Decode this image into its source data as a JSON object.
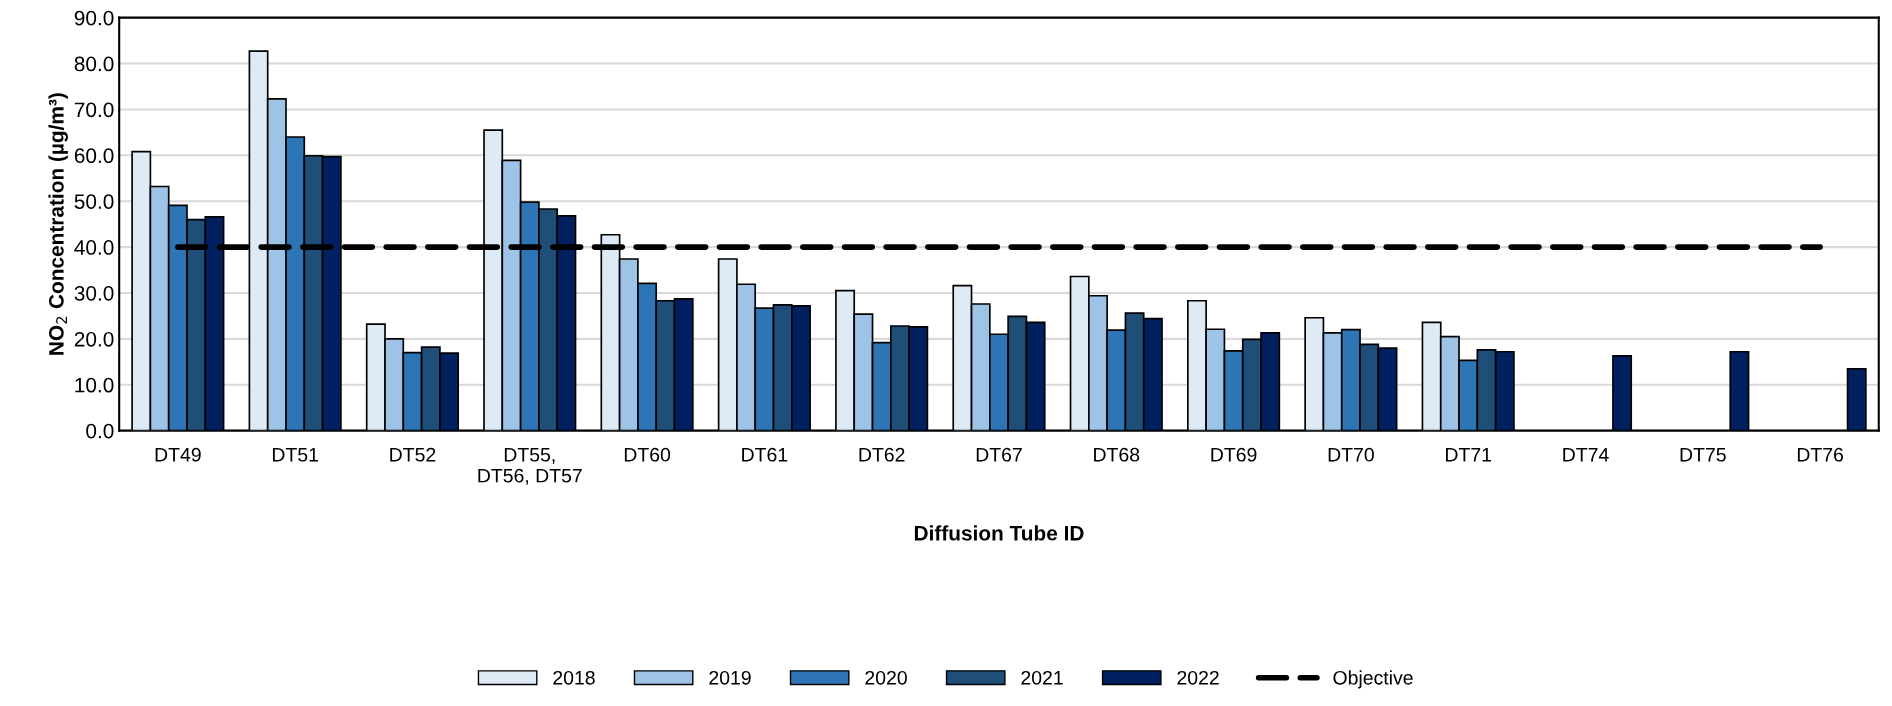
{
  "chart_data": {
    "type": "bar",
    "xlabel": "Diffusion Tube ID",
    "ylabel": "NO$_{2}$ Concentration (µg/m³)",
    "categories": [
      "DT49",
      "DT51",
      "DT52",
      "DT55,\nDT56, DT57",
      "DT60",
      "DT61",
      "DT62",
      "DT67",
      "DT68",
      "DT69",
      "DT70",
      "DT71",
      "DT74",
      "DT75",
      "DT76"
    ],
    "series": [
      {
        "name": "2018",
        "color": "#deebf7",
        "values": [
          60.8,
          82.7,
          23.2,
          65.5,
          42.7,
          37.4,
          30.5,
          31.6,
          33.6,
          28.3,
          24.6,
          23.6,
          null,
          null,
          null
        ]
      },
      {
        "name": "2019",
        "color": "#9dc3e6",
        "values": [
          53.2,
          72.3,
          20.0,
          58.9,
          37.4,
          31.9,
          25.4,
          27.6,
          29.4,
          22.1,
          21.3,
          20.5,
          null,
          null,
          null
        ]
      },
      {
        "name": "2020",
        "color": "#2e75b6",
        "values": [
          49.1,
          64.0,
          17.0,
          49.8,
          32.1,
          26.7,
          19.2,
          21.0,
          21.9,
          17.4,
          22.0,
          15.3,
          null,
          null,
          null
        ]
      },
      {
        "name": "2021",
        "color": "#1f4e79",
        "values": [
          46.0,
          59.9,
          18.2,
          48.3,
          28.3,
          27.4,
          22.8,
          24.9,
          25.6,
          19.9,
          18.8,
          17.6,
          null,
          null,
          null
        ]
      },
      {
        "name": "2022",
        "color": "#002060",
        "values": [
          46.6,
          59.7,
          16.9,
          46.8,
          28.7,
          27.2,
          22.6,
          23.6,
          24.4,
          21.3,
          18.0,
          17.2,
          16.3,
          17.2,
          13.5
        ]
      },
      {
        "name": "Objective",
        "type": "line",
        "color": "#000000",
        "line_style": "dashed",
        "marker": "none",
        "values": [
          40,
          40,
          40,
          40,
          40,
          40,
          40,
          40,
          40,
          40,
          40,
          40,
          40,
          40,
          40
        ]
      }
    ],
    "ylim": [
      0,
      90
    ],
    "yticks": [
      {
        "value": 0,
        "label": "0.0"
      },
      {
        "value": 10,
        "label": "10.0"
      },
      {
        "value": 20,
        "label": "20.0"
      },
      {
        "value": 30,
        "label": "30.0"
      },
      {
        "value": 40,
        "label": "40.0"
      },
      {
        "value": 50,
        "label": "50.0"
      },
      {
        "value": 60,
        "label": "60.0"
      },
      {
        "value": 70,
        "label": "70.0"
      },
      {
        "value": 80,
        "label": "80.0"
      },
      {
        "value": 90,
        "label": "90.0"
      }
    ],
    "grid": "y",
    "legend": "bottom"
  }
}
